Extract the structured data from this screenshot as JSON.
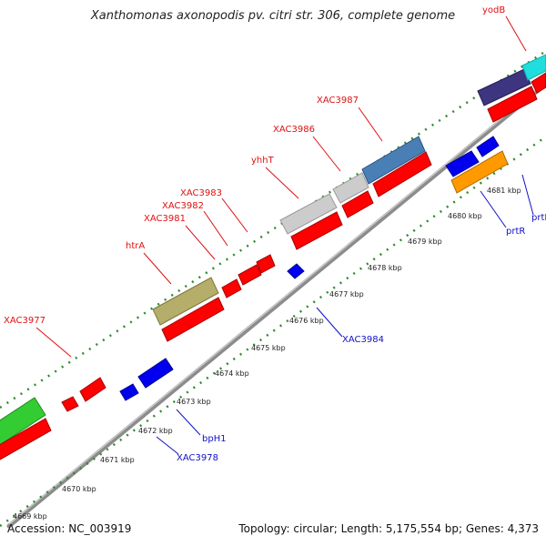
{
  "title": "Xanthomonas axonopodis pv. citri str. 306, complete genome",
  "accession": "Accession: NC_003919",
  "summary": "Topology: circular; Length: 5,175,554 bp; Genes: 4,373",
  "colors": {
    "backbone": "#8c8c8c",
    "tick": "#2f8a2f",
    "label_top": "#e01010",
    "label_bottom": "#1010c8",
    "red": "#ff0000",
    "blue": "#0000ee",
    "green": "#33cc33",
    "olive": "#b5ad6a",
    "grey": "#c8c8c8",
    "steel": "#4a7fb5",
    "navy": "#3d3580",
    "cyan": "#22dddd",
    "orange": "#ff9900"
  },
  "kbp_labels": [
    "4669 kbp",
    "4670 kbp",
    "4671 kbp",
    "4672 kbp",
    "4673 kbp",
    "4674 kbp",
    "4675 kbp",
    "4676 kbp",
    "4677 kbp",
    "4678 kbp",
    "4679 kbp",
    "4680 kbp",
    "4681 kbp"
  ],
  "top_labels": [
    "XAC3977",
    "htrA",
    "XAC3981",
    "XAC3982",
    "XAC3983",
    "yhhT",
    "XAC3986",
    "XAC3987",
    "yodB"
  ],
  "bottom_labels": [
    "XAC3978",
    "bpH1",
    "XAC3984",
    "prtR",
    "prtI"
  ]
}
